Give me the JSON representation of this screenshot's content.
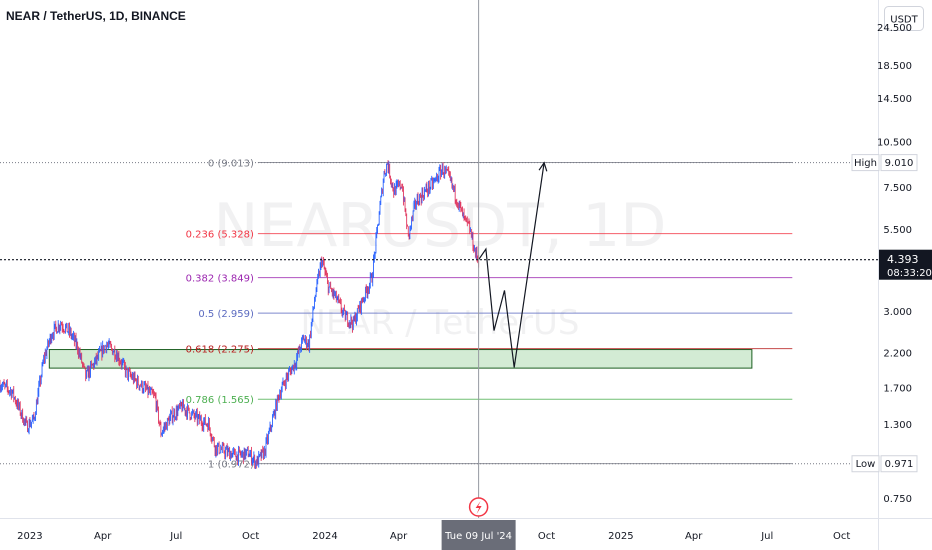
{
  "header": {
    "title": "NEAR / TetherUS, 1D, BINANCE"
  },
  "price_axis": {
    "currency_button": "USDT"
  },
  "watermark": {
    "symbol": "NEARUSDT, 1D",
    "description": "NEAR / TetherUS"
  },
  "colors": {
    "candle_up": "#2962ff",
    "candle_down": "#e0365e",
    "projection": "#131722",
    "box_fill": "#c8e6c9",
    "box_border": "#1b5e20"
  },
  "chart_data": {
    "type": "candlestick",
    "symbol": "NEAR / TetherUS",
    "interval": "1D",
    "exchange": "BINANCE",
    "y_scale": "log",
    "ylim": [
      0.65,
      30
    ],
    "xlim": [
      "2022-11-25",
      "2025-11-15"
    ],
    "y_ticks": [
      24.5,
      18.5,
      14.5,
      10.5,
      7.5,
      5.5,
      3.0,
      2.2,
      1.7,
      1.3,
      0.75
    ],
    "x_ticks": [
      {
        "date": "2023-01-01",
        "label": "2023"
      },
      {
        "date": "2023-04-01",
        "label": "Apr"
      },
      {
        "date": "2023-07-01",
        "label": "Jul"
      },
      {
        "date": "2023-10-01",
        "label": "Oct"
      },
      {
        "date": "2024-01-01",
        "label": "2024"
      },
      {
        "date": "2024-04-01",
        "label": "Apr"
      },
      {
        "date": "2024-10-01",
        "label": "Oct"
      },
      {
        "date": "2025-01-01",
        "label": "2025"
      },
      {
        "date": "2025-04-01",
        "label": "Apr"
      },
      {
        "date": "2025-07-01",
        "label": "Jul"
      },
      {
        "date": "2025-10-01",
        "label": "Oct"
      }
    ],
    "price_path": [
      [
        "2022-11-25",
        1.75
      ],
      [
        "2022-12-10",
        1.65
      ],
      [
        "2022-12-28",
        1.28
      ],
      [
        "2023-01-06",
        1.35
      ],
      [
        "2023-01-18",
        2.1
      ],
      [
        "2023-01-28",
        2.55
      ],
      [
        "2023-02-08",
        2.75
      ],
      [
        "2023-02-20",
        2.55
      ],
      [
        "2023-03-01",
        2.3
      ],
      [
        "2023-03-11",
        1.85
      ],
      [
        "2023-03-22",
        2.05
      ],
      [
        "2023-04-05",
        2.35
      ],
      [
        "2023-04-18",
        2.2
      ],
      [
        "2023-05-01",
        1.9
      ],
      [
        "2023-05-20",
        1.72
      ],
      [
        "2023-06-05",
        1.58
      ],
      [
        "2023-06-12",
        1.22
      ],
      [
        "2023-06-25",
        1.38
      ],
      [
        "2023-07-08",
        1.48
      ],
      [
        "2023-07-28",
        1.35
      ],
      [
        "2023-08-10",
        1.3
      ],
      [
        "2023-08-18",
        1.1
      ],
      [
        "2023-09-01",
        1.06
      ],
      [
        "2023-09-15",
        1.03
      ],
      [
        "2023-09-28",
        1.05
      ],
      [
        "2023-10-08",
        0.98
      ],
      [
        "2023-10-18",
        1.06
      ],
      [
        "2023-10-25",
        1.25
      ],
      [
        "2023-11-05",
        1.62
      ],
      [
        "2023-11-15",
        1.85
      ],
      [
        "2023-11-25",
        2.05
      ],
      [
        "2023-12-05",
        2.45
      ],
      [
        "2023-12-12",
        2.35
      ],
      [
        "2023-12-20",
        3.4
      ],
      [
        "2023-12-28",
        4.4
      ],
      [
        "2024-01-05",
        3.6
      ],
      [
        "2024-01-15",
        3.3
      ],
      [
        "2024-01-25",
        2.9
      ],
      [
        "2024-02-05",
        2.75
      ],
      [
        "2024-02-15",
        3.2
      ],
      [
        "2024-02-28",
        3.85
      ],
      [
        "2024-03-08",
        6.2
      ],
      [
        "2024-03-14",
        8.3
      ],
      [
        "2024-03-18",
        9.0
      ],
      [
        "2024-03-26",
        7.3
      ],
      [
        "2024-04-05",
        7.7
      ],
      [
        "2024-04-13",
        5.2
      ],
      [
        "2024-04-22",
        6.7
      ],
      [
        "2024-05-02",
        7.2
      ],
      [
        "2024-05-15",
        7.8
      ],
      [
        "2024-05-25",
        8.6
      ],
      [
        "2024-06-02",
        8.1
      ],
      [
        "2024-06-12",
        6.9
      ],
      [
        "2024-06-20",
        6.0
      ],
      [
        "2024-06-28",
        5.5
      ],
      [
        "2024-07-05",
        4.6
      ],
      [
        "2024-07-09",
        4.393
      ]
    ],
    "high": {
      "label": "High",
      "value": "9.010"
    },
    "low": {
      "label": "Low",
      "value": "0.971"
    },
    "current_price": {
      "value": "4.393",
      "countdown": "08:33:20"
    },
    "crosshair": {
      "date": "2024-07-09",
      "label": "Tue 09 Jul '24"
    },
    "fibonacci": {
      "start": "2023-10-10",
      "end": "2025-08-01",
      "levels": [
        {
          "ratio": "0",
          "price": 9.013,
          "label": "0 (9.013)",
          "color": "#787b86"
        },
        {
          "ratio": "0.236",
          "price": 5.328,
          "label": "0.236 (5.328)",
          "color": "#f23645"
        },
        {
          "ratio": "0.382",
          "price": 3.849,
          "label": "0.382 (3.849)",
          "color": "#9c27b0"
        },
        {
          "ratio": "0.5",
          "price": 2.959,
          "label": "0.5 (2.959)",
          "color": "#5c6bc0"
        },
        {
          "ratio": "0.618",
          "price": 2.275,
          "label": "0.618 (2.275)",
          "color": "#b71c1c"
        },
        {
          "ratio": "0.786",
          "price": 1.565,
          "label": "0.786 (1.565)",
          "color": "#4caf50"
        },
        {
          "ratio": "1",
          "price": 0.972,
          "label": "1 (0.972)",
          "color": "#787b86"
        }
      ]
    },
    "support_zone": {
      "start": "2023-01-25",
      "end": "2025-06-12",
      "top": 2.26,
      "bottom": 1.97
    },
    "projection_path": [
      [
        "2024-07-09",
        4.393
      ],
      [
        "2024-07-18",
        4.75
      ],
      [
        "2024-07-28",
        2.6
      ],
      [
        "2024-08-10",
        3.5
      ],
      [
        "2024-08-22",
        1.98
      ],
      [
        "2024-09-10",
        4.3
      ],
      [
        "2024-09-28",
        9.0
      ]
    ]
  }
}
